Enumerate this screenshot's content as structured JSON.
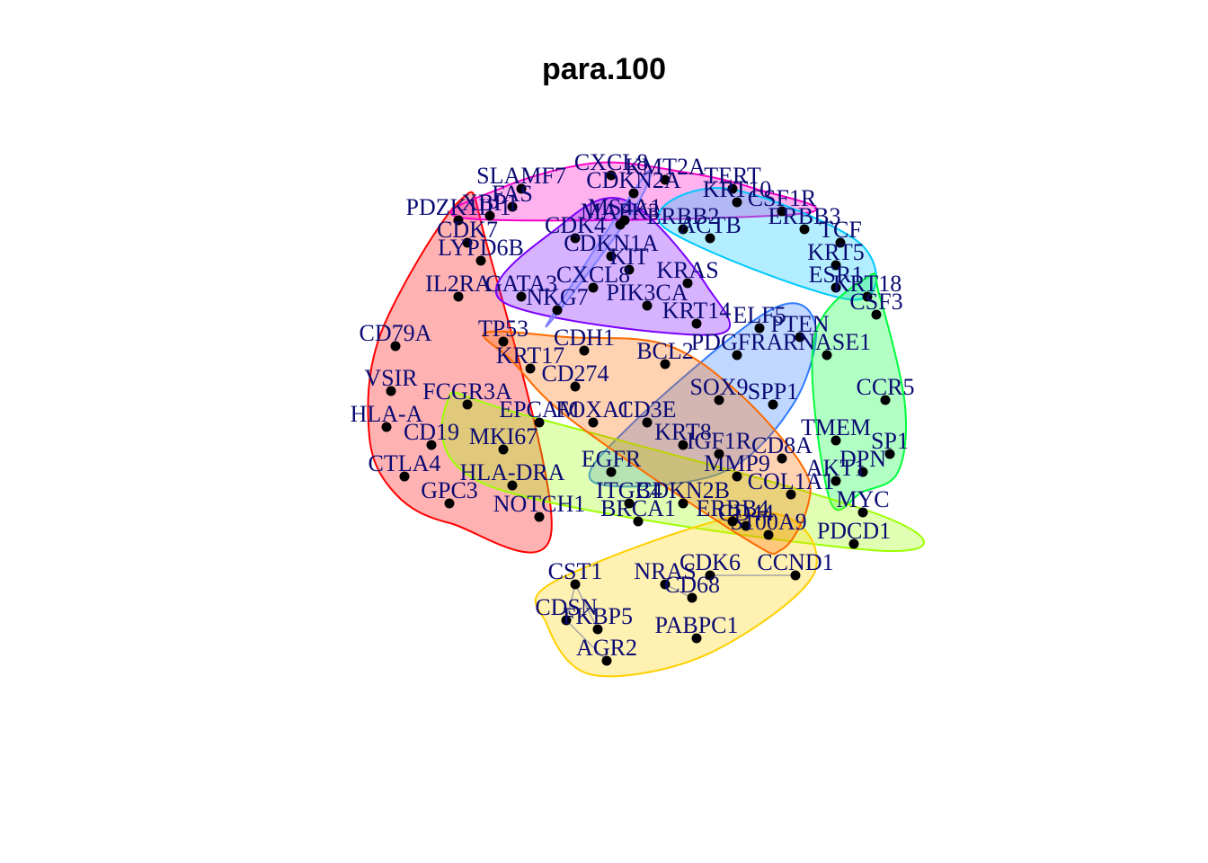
{
  "title": "para.100",
  "hull_colors": [
    "#ff0000",
    "#ff00c8",
    "#7a00ff",
    "#2f7bff",
    "#00c8ff",
    "#00ff3c",
    "#9cff00",
    "#ffd000",
    "#ff6a00",
    "#7f7fff"
  ],
  "nodes": [
    {
      "label": "CXCL8"
    },
    {
      "label": "KMT2A"
    },
    {
      "label": "SLAMF7"
    },
    {
      "label": "CDKN2A"
    },
    {
      "label": "FAS"
    },
    {
      "label": "PDZK1IP1"
    },
    {
      "label": "XBP1"
    },
    {
      "label": "MAPK3"
    },
    {
      "label": "TERT"
    },
    {
      "label": "KRT10"
    },
    {
      "label": "CSF1R"
    },
    {
      "label": "MS4A1"
    },
    {
      "label": "ERBB2"
    },
    {
      "label": "ERBB3"
    },
    {
      "label": "CDK7"
    },
    {
      "label": "TCF"
    },
    {
      "label": "CDK4"
    },
    {
      "label": "ACTB"
    },
    {
      "label": "KRT5"
    },
    {
      "label": "LYPD6B"
    },
    {
      "label": "CDKN1A"
    },
    {
      "label": "KIT"
    },
    {
      "label": "KRAS"
    },
    {
      "label": "ESR1"
    },
    {
      "label": "PIK3CA"
    },
    {
      "label": "CXCL8"
    },
    {
      "label": "KRT18"
    },
    {
      "label": "IL2RA"
    },
    {
      "label": "NKG7"
    },
    {
      "label": "KRT14"
    },
    {
      "label": "ELF5"
    },
    {
      "label": "PTEN"
    },
    {
      "label": "CSF3"
    },
    {
      "label": "CD79A"
    },
    {
      "label": "TP53"
    },
    {
      "label": "CDH1"
    },
    {
      "label": "PDGFRA"
    },
    {
      "label": "RNASE1"
    },
    {
      "label": "BCL2"
    },
    {
      "label": "VSIR"
    },
    {
      "label": "FCGR3A"
    },
    {
      "label": "SOX9"
    },
    {
      "label": "HLA-A"
    },
    {
      "label": "CCR5"
    },
    {
      "label": "EPCAM"
    },
    {
      "label": "CD19"
    },
    {
      "label": "CD3E"
    },
    {
      "label": "TMEM"
    },
    {
      "label": "MKI67"
    },
    {
      "label": "SP1"
    },
    {
      "label": "KRT8"
    },
    {
      "label": "CTLA4"
    },
    {
      "label": "DPN"
    },
    {
      "label": "GPC3"
    },
    {
      "label": "AKT1"
    },
    {
      "label": "COL1A1"
    },
    {
      "label": "MYC"
    },
    {
      "label": "EGFR"
    },
    {
      "label": "PDCD1"
    },
    {
      "label": "NOTCH1"
    },
    {
      "label": "CDKN2B"
    },
    {
      "label": "CD44"
    },
    {
      "label": "CCND1"
    },
    {
      "label": "CST1"
    },
    {
      "label": "NRAS"
    },
    {
      "label": "CDK6"
    },
    {
      "label": "CD68"
    },
    {
      "label": "CDSN"
    },
    {
      "label": "FKBP5"
    },
    {
      "label": "PABPC1"
    },
    {
      "label": "AGR2"
    },
    {
      "label": "BRCA1"
    },
    {
      "label": "HLA-DRA"
    },
    {
      "label": "CD274"
    },
    {
      "label": "SPP1"
    },
    {
      "label": "KRT17"
    },
    {
      "label": "ITGB4"
    },
    {
      "label": "MMP9"
    },
    {
      "label": "S100A9"
    },
    {
      "label": "IGF1R"
    },
    {
      "label": "FOXA1"
    },
    {
      "label": "GATA3"
    },
    {
      "label": "ERBB4"
    },
    {
      "label": "CD8A"
    }
  ]
}
